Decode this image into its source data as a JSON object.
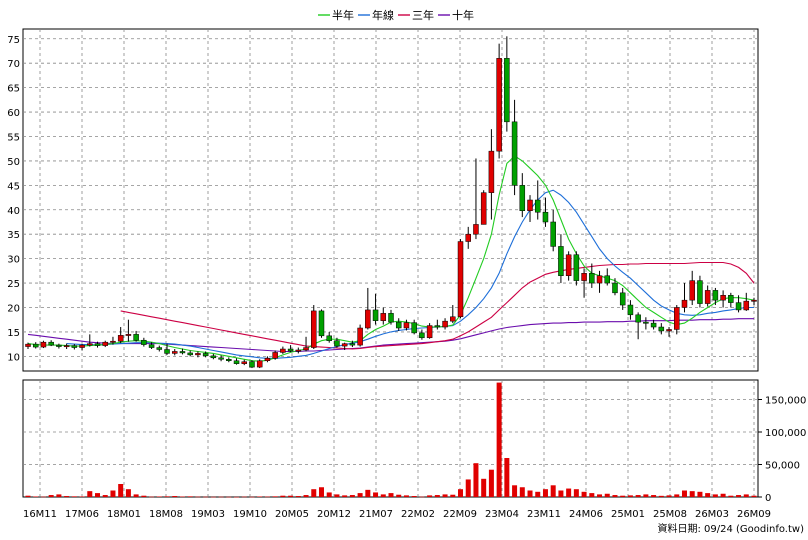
{
  "chart_data": {
    "type": "candlestick",
    "legend": [
      {
        "name": "半年",
        "color": "#22cc22"
      },
      {
        "name": "年線",
        "color": "#1e6fd9"
      },
      {
        "name": "三年",
        "color": "#cc0044"
      },
      {
        "name": "十年",
        "color": "#6a0dad"
      }
    ],
    "price_axis": {
      "ylim": [
        7,
        77
      ],
      "ticks": [
        10,
        15,
        20,
        25,
        30,
        35,
        40,
        45,
        50,
        55,
        60,
        65,
        70,
        75
      ]
    },
    "volume_axis": {
      "ylim": [
        0,
        180000
      ],
      "ticks": [
        0,
        50000,
        100000,
        150000
      ],
      "tick_labels": [
        "0",
        "50,000",
        "100,000",
        "150,000"
      ]
    },
    "x_labels": [
      "16M11",
      "17M06",
      "18M01",
      "18M08",
      "19M03",
      "19M10",
      "20M05",
      "20M12",
      "21M07",
      "22M02",
      "22M09",
      "23M04",
      "23M11",
      "24M06",
      "25M01",
      "25M08",
      "26M03",
      "26M09"
    ],
    "source_note": "資料日期: 09/24 (Goodinfo.tw)",
    "candles": [
      [
        12.0,
        12.8,
        11.5,
        12.5
      ],
      [
        12.5,
        12.9,
        11.6,
        11.9
      ],
      [
        11.9,
        13.2,
        11.7,
        12.9
      ],
      [
        12.9,
        13.3,
        12.1,
        12.3
      ],
      [
        12.3,
        12.6,
        11.6,
        12.0
      ],
      [
        12.0,
        12.6,
        11.5,
        12.2
      ],
      [
        12.2,
        12.5,
        11.4,
        11.8
      ],
      [
        11.8,
        12.5,
        11.2,
        12.3
      ],
      [
        12.3,
        14.5,
        12.0,
        12.6
      ],
      [
        12.6,
        13.0,
        11.8,
        12.2
      ],
      [
        12.2,
        13.2,
        11.9,
        12.9
      ],
      [
        12.9,
        14.0,
        12.4,
        13.1
      ],
      [
        13.1,
        16.0,
        12.7,
        14.3
      ],
      [
        14.3,
        17.5,
        13.0,
        14.5
      ],
      [
        14.5,
        15.2,
        13.0,
        13.3
      ],
      [
        13.3,
        13.8,
        12.0,
        12.4
      ],
      [
        12.4,
        12.9,
        11.5,
        11.8
      ],
      [
        11.8,
        12.2,
        11.0,
        11.4
      ],
      [
        11.4,
        12.6,
        10.3,
        10.6
      ],
      [
        10.6,
        11.5,
        10.2,
        11.0
      ],
      [
        11.0,
        11.6,
        10.4,
        10.7
      ],
      [
        10.7,
        11.2,
        10.0,
        10.3
      ],
      [
        10.3,
        11.0,
        9.8,
        10.6
      ],
      [
        10.6,
        11.0,
        9.8,
        10.1
      ],
      [
        10.1,
        10.5,
        9.4,
        9.7
      ],
      [
        9.7,
        10.2,
        9.0,
        9.4
      ],
      [
        9.4,
        9.8,
        8.8,
        9.1
      ],
      [
        9.1,
        9.6,
        8.3,
        8.5
      ],
      [
        8.5,
        9.3,
        8.2,
        8.9
      ],
      [
        8.9,
        9.2,
        7.6,
        7.8
      ],
      [
        7.8,
        9.4,
        7.6,
        9.1
      ],
      [
        9.1,
        10.0,
        8.8,
        9.6
      ],
      [
        9.6,
        11.2,
        9.3,
        10.8
      ],
      [
        10.8,
        12.0,
        10.5,
        11.5
      ],
      [
        11.5,
        12.3,
        10.9,
        11.1
      ],
      [
        11.1,
        11.8,
        10.6,
        11.3
      ],
      [
        11.3,
        14.0,
        11.0,
        11.8
      ],
      [
        11.8,
        20.5,
        11.5,
        19.3
      ],
      [
        19.3,
        19.6,
        13.8,
        14.2
      ],
      [
        14.2,
        15.0,
        12.8,
        13.2
      ],
      [
        13.2,
        13.8,
        11.8,
        12.1
      ],
      [
        12.1,
        12.8,
        11.3,
        12.6
      ],
      [
        12.6,
        13.2,
        11.9,
        12.3
      ],
      [
        12.3,
        16.5,
        12.0,
        15.8
      ],
      [
        15.8,
        24.0,
        15.5,
        19.5
      ],
      [
        19.5,
        22.8,
        16.5,
        17.3
      ],
      [
        17.3,
        20.0,
        16.5,
        18.8
      ],
      [
        18.8,
        19.5,
        16.5,
        17.0
      ],
      [
        17.0,
        17.8,
        15.2,
        15.8
      ],
      [
        15.8,
        17.5,
        15.3,
        16.9
      ],
      [
        16.9,
        17.5,
        14.5,
        14.8
      ],
      [
        14.8,
        15.5,
        13.4,
        13.8
      ],
      [
        13.8,
        16.8,
        13.6,
        16.3
      ],
      [
        16.3,
        17.5,
        15.5,
        16.0
      ],
      [
        16.0,
        17.8,
        15.5,
        17.2
      ],
      [
        17.2,
        20.5,
        16.8,
        18.1
      ],
      [
        18.1,
        34.0,
        17.8,
        33.5
      ],
      [
        33.5,
        36.5,
        32.0,
        35.0
      ],
      [
        35.0,
        50.5,
        34.0,
        37.0
      ],
      [
        37.0,
        44.0,
        37.0,
        43.5
      ],
      [
        43.5,
        56.5,
        38.0,
        52.0
      ],
      [
        52.0,
        74.0,
        50.5,
        71.0
      ],
      [
        71.0,
        75.5,
        56.0,
        58.0
      ],
      [
        58.0,
        62.5,
        43.0,
        45.0
      ],
      [
        45.0,
        47.5,
        38.5,
        39.8
      ],
      [
        39.8,
        43.0,
        37.5,
        42.0
      ],
      [
        42.0,
        46.0,
        38.0,
        39.5
      ],
      [
        39.5,
        42.5,
        36.5,
        37.5
      ],
      [
        37.5,
        40.0,
        31.5,
        32.5
      ],
      [
        32.5,
        35.0,
        25.0,
        26.5
      ],
      [
        26.5,
        31.5,
        25.5,
        30.8
      ],
      [
        30.8,
        31.5,
        24.5,
        25.5
      ],
      [
        25.5,
        28.0,
        22.0,
        27.0
      ],
      [
        27.0,
        29.0,
        24.0,
        25.0
      ],
      [
        25.0,
        27.5,
        23.0,
        26.5
      ],
      [
        26.5,
        28.0,
        24.5,
        25.0
      ],
      [
        25.0,
        26.0,
        22.5,
        23.0
      ],
      [
        23.0,
        24.0,
        19.5,
        20.5
      ],
      [
        20.5,
        21.5,
        17.5,
        18.5
      ],
      [
        18.5,
        19.0,
        13.5,
        17.0
      ],
      [
        17.0,
        18.0,
        15.5,
        16.8
      ],
      [
        16.8,
        17.5,
        15.5,
        16.0
      ],
      [
        16.0,
        16.8,
        14.5,
        15.2
      ],
      [
        15.2,
        16.0,
        14.0,
        15.5
      ],
      [
        15.5,
        20.5,
        14.5,
        20.0
      ],
      [
        20.0,
        25.0,
        19.0,
        21.5
      ],
      [
        21.5,
        27.5,
        20.5,
        25.5
      ],
      [
        25.5,
        26.5,
        20.0,
        20.8
      ],
      [
        20.8,
        24.5,
        20.2,
        23.5
      ],
      [
        23.5,
        24.0,
        20.5,
        21.5
      ],
      [
        21.5,
        23.5,
        20.0,
        22.5
      ],
      [
        22.5,
        23.0,
        20.0,
        21.0
      ],
      [
        21.0,
        22.5,
        19.0,
        19.5
      ],
      [
        19.5,
        23.0,
        19.3,
        21.3
      ],
      [
        21.3,
        22.0,
        20.5,
        21.5
      ]
    ],
    "volumes": [
      2000,
      800,
      500,
      3000,
      4000,
      1500,
      1000,
      800,
      9000,
      6000,
      3000,
      10000,
      20000,
      12000,
      4000,
      2000,
      500,
      800,
      1000,
      1500,
      700,
      1000,
      500,
      400,
      300,
      400,
      300,
      200,
      500,
      300,
      800,
      600,
      1000,
      2000,
      2000,
      1500,
      3000,
      12000,
      15000,
      7000,
      4000,
      2500,
      3000,
      6000,
      11000,
      7000,
      4000,
      6000,
      3500,
      2500,
      1500,
      500,
      2500,
      3000,
      4000,
      3500,
      12000,
      27000,
      52000,
      28000,
      42000,
      176000,
      60000,
      18000,
      15000,
      10000,
      8000,
      12000,
      18000,
      10000,
      13000,
      12000,
      8000,
      6000,
      4000,
      5000,
      3000,
      2000,
      2500,
      3000,
      4000,
      3000,
      1800,
      2500,
      4000,
      10000,
      9000,
      8000,
      6000,
      4000,
      5000,
      2000,
      3000,
      4000,
      2000
    ],
    "ma_half_year": [
      12.6,
      12.4,
      12.3,
      12.3,
      12.3,
      12.2,
      12.1,
      12.1,
      12.2,
      12.3,
      12.4,
      12.6,
      12.9,
      13.1,
      13.2,
      13.1,
      12.9,
      12.6,
      12.2,
      11.8,
      11.5,
      11.2,
      11.0,
      10.8,
      10.6,
      10.3,
      10.0,
      9.7,
      9.4,
      9.1,
      9.0,
      9.2,
      9.7,
      10.3,
      10.8,
      11.2,
      11.5,
      12.5,
      13.2,
      13.5,
      13.5,
      13.2,
      12.9,
      13.2,
      14.5,
      15.5,
      16.2,
      17.0,
      17.2,
      17.0,
      16.7,
      16.2,
      16.0,
      16.0,
      16.1,
      16.4,
      18.5,
      22.0,
      26.0,
      30.0,
      35.0,
      43.0,
      49.5,
      51.0,
      50.0,
      48.5,
      47.0,
      45.0,
      42.0,
      38.0,
      34.0,
      31.0,
      28.5,
      27.0,
      26.5,
      26.0,
      25.5,
      24.5,
      23.0,
      21.5,
      20.0,
      19.0,
      18.0,
      17.0,
      16.5,
      16.8,
      17.8,
      19.0,
      20.0,
      21.0,
      21.8,
      22.0,
      22.0,
      21.8,
      21.5
    ],
    "ma_year": [
      null,
      null,
      null,
      null,
      null,
      12.6,
      12.5,
      12.4,
      12.4,
      12.3,
      12.4,
      12.5,
      12.6,
      12.7,
      12.8,
      12.8,
      12.8,
      12.7,
      12.6,
      12.5,
      12.3,
      12.1,
      11.8,
      11.5,
      11.2,
      10.9,
      10.6,
      10.3,
      10.1,
      9.9,
      9.7,
      9.6,
      9.6,
      9.7,
      9.8,
      10.0,
      10.2,
      10.6,
      11.1,
      11.6,
      12.0,
      12.4,
      12.7,
      13.0,
      13.5,
      14.1,
      14.6,
      15.0,
      15.3,
      15.5,
      15.7,
      15.8,
      15.9,
      16.0,
      16.1,
      16.3,
      17.2,
      18.5,
      20.0,
      21.8,
      24.0,
      27.0,
      31.0,
      34.5,
      37.5,
      40.0,
      42.0,
      43.5,
      44.0,
      43.0,
      41.5,
      39.5,
      37.0,
      34.5,
      32.0,
      30.0,
      28.5,
      27.2,
      26.0,
      24.5,
      23.0,
      21.5,
      20.3,
      19.5,
      18.8,
      18.5,
      18.4,
      18.5,
      18.8,
      19.0,
      19.3,
      19.5,
      19.8,
      20.0,
      20.0
    ],
    "ma_three_year": [
      null,
      null,
      null,
      null,
      null,
      null,
      null,
      null,
      null,
      null,
      null,
      null,
      19.3,
      19.0,
      18.7,
      18.4,
      18.1,
      17.8,
      17.5,
      17.2,
      16.9,
      16.6,
      16.3,
      16.0,
      15.7,
      15.4,
      15.1,
      14.8,
      14.5,
      14.2,
      13.9,
      13.6,
      13.3,
      13.0,
      12.7,
      12.4,
      12.1,
      12.0,
      11.9,
      11.8,
      11.7,
      11.6,
      11.5,
      11.6,
      11.8,
      12.0,
      12.1,
      12.2,
      12.3,
      12.4,
      12.5,
      12.6,
      12.8,
      13.0,
      13.2,
      13.5,
      14.2,
      15.0,
      16.0,
      17.0,
      18.0,
      19.5,
      21.0,
      22.5,
      24.0,
      25.2,
      26.0,
      26.8,
      27.2,
      27.5,
      27.8,
      28.0,
      28.2,
      28.4,
      28.6,
      28.7,
      28.8,
      28.8,
      28.9,
      28.9,
      29.0,
      29.0,
      29.0,
      29.0,
      29.0,
      29.0,
      29.1,
      29.2,
      29.2,
      29.2,
      29.2,
      28.9,
      28.2,
      27.0,
      25.0
    ],
    "ma_ten_year": [
      14.5,
      14.3,
      14.1,
      13.9,
      13.7,
      13.5,
      13.3,
      13.1,
      12.9,
      12.8,
      12.7,
      12.6,
      12.6,
      12.6,
      12.6,
      12.6,
      12.6,
      12.6,
      12.5,
      12.4,
      12.3,
      12.2,
      12.1,
      12.0,
      11.9,
      11.8,
      11.7,
      11.6,
      11.5,
      11.4,
      11.3,
      11.2,
      11.1,
      11.0,
      11.0,
      11.0,
      11.1,
      11.1,
      11.2,
      11.3,
      11.4,
      11.5,
      11.6,
      11.7,
      11.9,
      12.1,
      12.3,
      12.4,
      12.5,
      12.6,
      12.7,
      12.8,
      12.9,
      13.0,
      13.1,
      13.3,
      13.6,
      14.0,
      14.4,
      14.8,
      15.2,
      15.6,
      15.9,
      16.1,
      16.3,
      16.5,
      16.6,
      16.7,
      16.8,
      16.8,
      16.9,
      16.9,
      17.0,
      17.0,
      17.0,
      17.1,
      17.1,
      17.1,
      17.2,
      17.2,
      17.3,
      17.3,
      17.3,
      17.3,
      17.4,
      17.4,
      17.4,
      17.5,
      17.5,
      17.5,
      17.6,
      17.6,
      17.7,
      17.7,
      17.7
    ]
  }
}
